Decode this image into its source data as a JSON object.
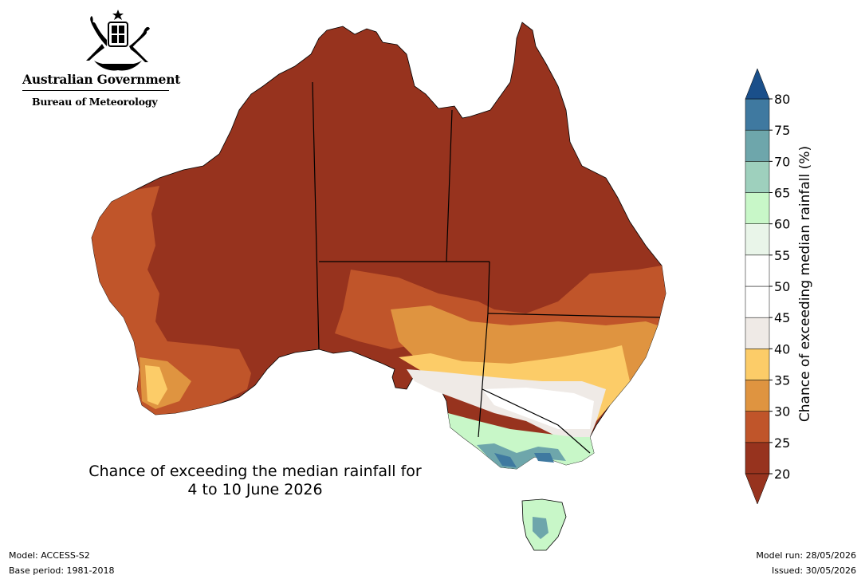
{
  "header": {
    "org_name": "Australian Government",
    "bureau_name": "Bureau of Meteorology",
    "crest_icon": "coat-of-arms-icon"
  },
  "map": {
    "title_line1": "Chance of exceeding the median rainfall for",
    "title_line2": "4 to 10 June 2026",
    "ocean_color": "#ffffff",
    "border_color": "#000000"
  },
  "legend": {
    "label": "Chance of exceeding median rainfall (%)",
    "ticks": [
      "20",
      "25",
      "30",
      "35",
      "40",
      "45",
      "50",
      "55",
      "60",
      "65",
      "70",
      "75",
      "80"
    ],
    "colors": [
      "#97331e",
      "#c0552a",
      "#df9440",
      "#fccc68",
      "#efeae6",
      "#ffffff",
      "#ffffff",
      "#e9f5e9",
      "#c8f7c8",
      "#9ed0bd",
      "#6ea6ab",
      "#3f79a0",
      "#1a4f8a"
    ],
    "under_color": "#97331e",
    "over_color": "#1a4f8a"
  },
  "footer": {
    "model": "Model: ACCESS-S2",
    "base_period": "Base period: 1981-2018",
    "model_run": "Model run: 28/05/2026",
    "issued": "Issued: 30/05/2026"
  }
}
